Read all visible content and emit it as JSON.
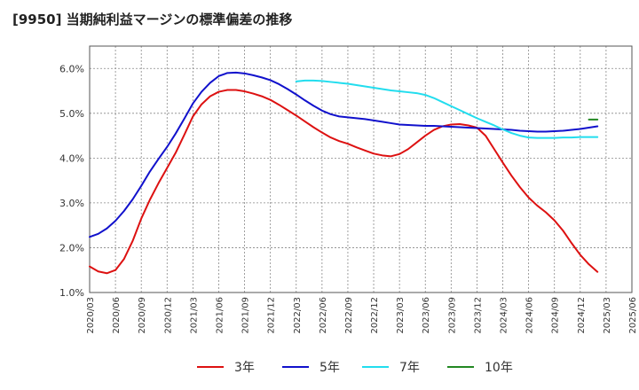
{
  "chart_data": {
    "type": "line",
    "title": "[9950]  当期純利益マージンの標準偏差の推移",
    "xlabel": "",
    "ylabel": "",
    "ylim": [
      1.0,
      6.5
    ],
    "y_ticks": [
      "1.0%",
      "2.0%",
      "3.0%",
      "4.0%",
      "5.0%",
      "6.0%"
    ],
    "y_tick_values": [
      1.0,
      2.0,
      3.0,
      4.0,
      5.0,
      6.0
    ],
    "x_ticks": [
      "2020/03",
      "2020/06",
      "2020/09",
      "2020/12",
      "2021/03",
      "2021/06",
      "2021/09",
      "2021/12",
      "2022/03",
      "2022/06",
      "2022/09",
      "2022/12",
      "2023/03",
      "2023/06",
      "2023/09",
      "2023/12",
      "2024/03",
      "2024/06",
      "2024/09",
      "2024/12",
      "2025/03",
      "2025/06"
    ],
    "grid": true,
    "legend_position": "bottom",
    "series": [
      {
        "name": "3年",
        "color": "#dd1111",
        "points": [
          [
            "2020/03",
            1.58
          ],
          [
            "2020/04",
            1.47
          ],
          [
            "2020/05",
            1.43
          ],
          [
            "2020/06",
            1.5
          ],
          [
            "2020/07",
            1.75
          ],
          [
            "2020/08",
            2.15
          ],
          [
            "2020/09",
            2.65
          ],
          [
            "2020/10",
            3.07
          ],
          [
            "2020/11",
            3.44
          ],
          [
            "2020/12",
            3.78
          ],
          [
            "2021/01",
            4.12
          ],
          [
            "2021/02",
            4.52
          ],
          [
            "2021/03",
            4.93
          ],
          [
            "2021/04",
            5.2
          ],
          [
            "2021/05",
            5.38
          ],
          [
            "2021/06",
            5.48
          ],
          [
            "2021/07",
            5.52
          ],
          [
            "2021/08",
            5.52
          ],
          [
            "2021/09",
            5.49
          ],
          [
            "2021/10",
            5.44
          ],
          [
            "2021/11",
            5.38
          ],
          [
            "2021/12",
            5.3
          ],
          [
            "2022/01",
            5.19
          ],
          [
            "2022/02",
            5.07
          ],
          [
            "2022/03",
            4.95
          ],
          [
            "2022/04",
            4.82
          ],
          [
            "2022/05",
            4.69
          ],
          [
            "2022/06",
            4.57
          ],
          [
            "2022/07",
            4.46
          ],
          [
            "2022/08",
            4.38
          ],
          [
            "2022/09",
            4.32
          ],
          [
            "2022/10",
            4.24
          ],
          [
            "2022/11",
            4.17
          ],
          [
            "2022/12",
            4.1
          ],
          [
            "2023/01",
            4.06
          ],
          [
            "2023/02",
            4.04
          ],
          [
            "2023/03",
            4.09
          ],
          [
            "2023/04",
            4.2
          ],
          [
            "2023/05",
            4.35
          ],
          [
            "2023/06",
            4.5
          ],
          [
            "2023/07",
            4.63
          ],
          [
            "2023/08",
            4.71
          ],
          [
            "2023/09",
            4.75
          ],
          [
            "2023/10",
            4.76
          ],
          [
            "2023/11",
            4.73
          ],
          [
            "2023/12",
            4.68
          ],
          [
            "2024/01",
            4.5
          ],
          [
            "2024/02",
            4.2
          ],
          [
            "2024/03",
            3.9
          ],
          [
            "2024/04",
            3.61
          ],
          [
            "2024/05",
            3.35
          ],
          [
            "2024/06",
            3.12
          ],
          [
            "2024/07",
            2.94
          ],
          [
            "2024/08",
            2.79
          ],
          [
            "2024/09",
            2.61
          ],
          [
            "2024/10",
            2.38
          ],
          [
            "2024/11",
            2.1
          ],
          [
            "2024/12",
            1.84
          ],
          [
            "2025/01",
            1.63
          ],
          [
            "2025/02",
            1.46
          ]
        ]
      },
      {
        "name": "5年",
        "color": "#1111cc",
        "points": [
          [
            "2020/03",
            2.24
          ],
          [
            "2020/04",
            2.31
          ],
          [
            "2020/05",
            2.43
          ],
          [
            "2020/06",
            2.6
          ],
          [
            "2020/07",
            2.82
          ],
          [
            "2020/08",
            3.08
          ],
          [
            "2020/09",
            3.38
          ],
          [
            "2020/10",
            3.7
          ],
          [
            "2020/11",
            3.98
          ],
          [
            "2020/12",
            4.25
          ],
          [
            "2021/01",
            4.55
          ],
          [
            "2021/02",
            4.88
          ],
          [
            "2021/03",
            5.22
          ],
          [
            "2021/04",
            5.48
          ],
          [
            "2021/05",
            5.68
          ],
          [
            "2021/06",
            5.83
          ],
          [
            "2021/07",
            5.9
          ],
          [
            "2021/08",
            5.91
          ],
          [
            "2021/09",
            5.89
          ],
          [
            "2021/10",
            5.85
          ],
          [
            "2021/11",
            5.8
          ],
          [
            "2021/12",
            5.74
          ],
          [
            "2022/01",
            5.65
          ],
          [
            "2022/02",
            5.54
          ],
          [
            "2022/03",
            5.42
          ],
          [
            "2022/04",
            5.29
          ],
          [
            "2022/05",
            5.17
          ],
          [
            "2022/06",
            5.06
          ],
          [
            "2022/07",
            4.98
          ],
          [
            "2022/08",
            4.93
          ],
          [
            "2022/09",
            4.91
          ],
          [
            "2022/10",
            4.89
          ],
          [
            "2022/11",
            4.87
          ],
          [
            "2022/12",
            4.84
          ],
          [
            "2023/01",
            4.81
          ],
          [
            "2023/02",
            4.78
          ],
          [
            "2023/03",
            4.75
          ],
          [
            "2023/04",
            4.74
          ],
          [
            "2023/05",
            4.73
          ],
          [
            "2023/06",
            4.72
          ],
          [
            "2023/07",
            4.72
          ],
          [
            "2023/08",
            4.71
          ],
          [
            "2023/09",
            4.7
          ],
          [
            "2023/10",
            4.69
          ],
          [
            "2023/11",
            4.68
          ],
          [
            "2023/12",
            4.67
          ],
          [
            "2024/01",
            4.66
          ],
          [
            "2024/02",
            4.65
          ],
          [
            "2024/03",
            4.64
          ],
          [
            "2024/04",
            4.63
          ],
          [
            "2024/05",
            4.61
          ],
          [
            "2024/06",
            4.6
          ],
          [
            "2024/07",
            4.59
          ],
          [
            "2024/08",
            4.59
          ],
          [
            "2024/09",
            4.6
          ],
          [
            "2024/10",
            4.61
          ],
          [
            "2024/11",
            4.63
          ],
          [
            "2024/12",
            4.65
          ],
          [
            "2025/01",
            4.68
          ],
          [
            "2025/02",
            4.71
          ]
        ]
      },
      {
        "name": "7年",
        "color": "#22ddee",
        "points": [
          [
            "2022/03",
            5.71
          ],
          [
            "2022/04",
            5.73
          ],
          [
            "2022/05",
            5.73
          ],
          [
            "2022/06",
            5.72
          ],
          [
            "2022/07",
            5.7
          ],
          [
            "2022/08",
            5.68
          ],
          [
            "2022/09",
            5.66
          ],
          [
            "2022/10",
            5.63
          ],
          [
            "2022/11",
            5.6
          ],
          [
            "2022/12",
            5.57
          ],
          [
            "2023/01",
            5.54
          ],
          [
            "2023/02",
            5.51
          ],
          [
            "2023/03",
            5.49
          ],
          [
            "2023/04",
            5.47
          ],
          [
            "2023/05",
            5.45
          ],
          [
            "2023/06",
            5.41
          ],
          [
            "2023/07",
            5.34
          ],
          [
            "2023/08",
            5.25
          ],
          [
            "2023/09",
            5.16
          ],
          [
            "2023/10",
            5.07
          ],
          [
            "2023/11",
            4.98
          ],
          [
            "2023/12",
            4.89
          ],
          [
            "2024/01",
            4.81
          ],
          [
            "2024/02",
            4.73
          ],
          [
            "2024/03",
            4.64
          ],
          [
            "2024/04",
            4.56
          ],
          [
            "2024/05",
            4.5
          ],
          [
            "2024/06",
            4.46
          ],
          [
            "2024/07",
            4.45
          ],
          [
            "2024/08",
            4.45
          ],
          [
            "2024/09",
            4.45
          ],
          [
            "2024/10",
            4.46
          ],
          [
            "2024/11",
            4.46
          ],
          [
            "2024/12",
            4.47
          ],
          [
            "2025/01",
            4.47
          ],
          [
            "2025/02",
            4.47
          ]
        ]
      },
      {
        "name": "10年",
        "color": "#228822",
        "points": [
          [
            "2025/01",
            4.86
          ],
          [
            "2025/02",
            4.86
          ]
        ]
      }
    ]
  }
}
